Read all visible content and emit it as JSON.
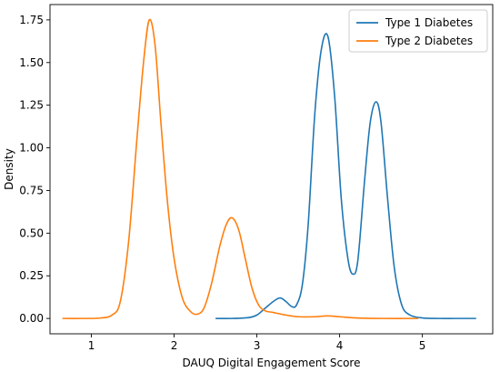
{
  "chart_data": {
    "type": "line",
    "title": "",
    "xlabel": "DAUQ Digital Engagement Score",
    "ylabel": "Density",
    "xlim": [
      0.5,
      5.85
    ],
    "ylim": [
      -0.09,
      1.84
    ],
    "xticks": [
      1,
      2,
      3,
      4,
      5
    ],
    "yticks": [
      0.0,
      0.25,
      0.5,
      0.75,
      1.0,
      1.25,
      1.5,
      1.75
    ],
    "ytick_labels": [
      "0.00",
      "0.25",
      "0.50",
      "0.75",
      "1.00",
      "1.25",
      "1.50",
      "1.75"
    ],
    "grid": false,
    "legend_position": "top-right",
    "series": [
      {
        "name": "Type 1 Diabetes",
        "color": "#1f77b4",
        "x": [
          2.5,
          2.7,
          2.9,
          3.0,
          3.1,
          3.2,
          3.28,
          3.35,
          3.42,
          3.48,
          3.55,
          3.62,
          3.7,
          3.78,
          3.86,
          3.94,
          4.02,
          4.1,
          4.16,
          4.22,
          4.3,
          4.37,
          4.44,
          4.5,
          4.58,
          4.66,
          4.75,
          4.85,
          5.0,
          5.2,
          5.4,
          5.65
        ],
        "y": [
          0.0,
          0.0,
          0.005,
          0.02,
          0.06,
          0.1,
          0.12,
          0.1,
          0.07,
          0.08,
          0.2,
          0.55,
          1.2,
          1.58,
          1.65,
          1.3,
          0.7,
          0.35,
          0.26,
          0.34,
          0.8,
          1.15,
          1.27,
          1.15,
          0.7,
          0.3,
          0.08,
          0.02,
          0.003,
          0.0,
          0.0,
          0.0
        ]
      },
      {
        "name": "Type 2 Diabetes",
        "color": "#ff7f0e",
        "x": [
          0.65,
          0.9,
          1.1,
          1.25,
          1.35,
          1.45,
          1.55,
          1.63,
          1.7,
          1.77,
          1.84,
          1.92,
          2.0,
          2.1,
          2.2,
          2.28,
          2.36,
          2.45,
          2.55,
          2.63,
          2.7,
          2.78,
          2.86,
          2.94,
          3.02,
          3.1,
          3.2,
          3.35,
          3.5,
          3.7,
          3.85,
          4.0,
          4.2,
          4.5,
          4.95
        ],
        "y": [
          0.0,
          0.0,
          0.002,
          0.02,
          0.1,
          0.45,
          1.05,
          1.5,
          1.75,
          1.6,
          1.15,
          0.68,
          0.35,
          0.12,
          0.04,
          0.025,
          0.06,
          0.2,
          0.42,
          0.55,
          0.59,
          0.52,
          0.35,
          0.18,
          0.08,
          0.045,
          0.035,
          0.02,
          0.01,
          0.01,
          0.015,
          0.01,
          0.003,
          0.0,
          0.0
        ]
      }
    ]
  }
}
